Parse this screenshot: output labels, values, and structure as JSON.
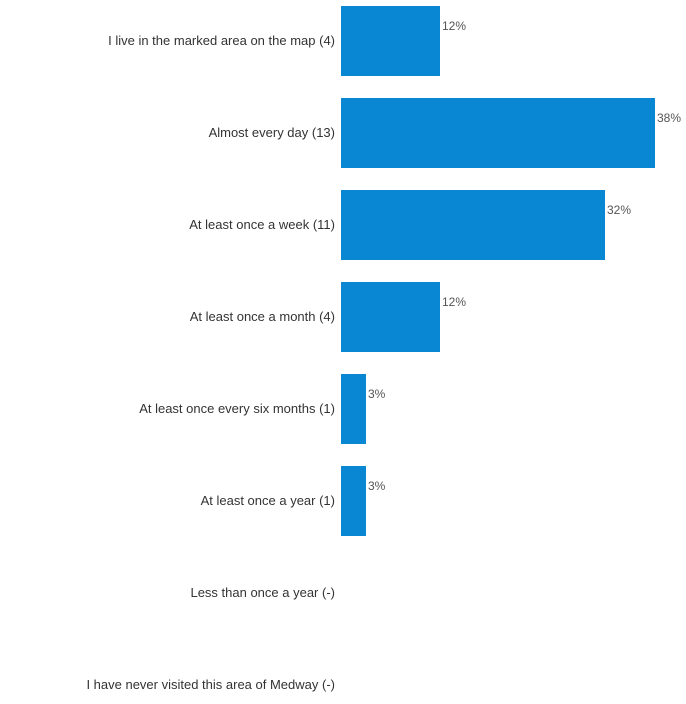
{
  "chart_data": {
    "type": "bar",
    "orientation": "horizontal",
    "categories": [
      "I live in the marked area on the map (4)",
      "Almost every day (13)",
      "At least once a week (11)",
      "At least once a month (4)",
      "At least once every six months (1)",
      "At least once a year (1)",
      "Less than once a year (-)",
      "I have never visited this area of Medway (-)"
    ],
    "values": [
      12,
      38,
      32,
      12,
      3,
      3,
      0,
      0
    ],
    "value_labels": [
      "12%",
      "38%",
      "32%",
      "12%",
      "3%",
      "3%",
      "",
      ""
    ],
    "unit": "%",
    "xlim": [
      0,
      38
    ],
    "grid": false,
    "legend": "none",
    "bar_color": "#0a87d2",
    "label_color": "#333333",
    "value_label_color": "#555555"
  }
}
